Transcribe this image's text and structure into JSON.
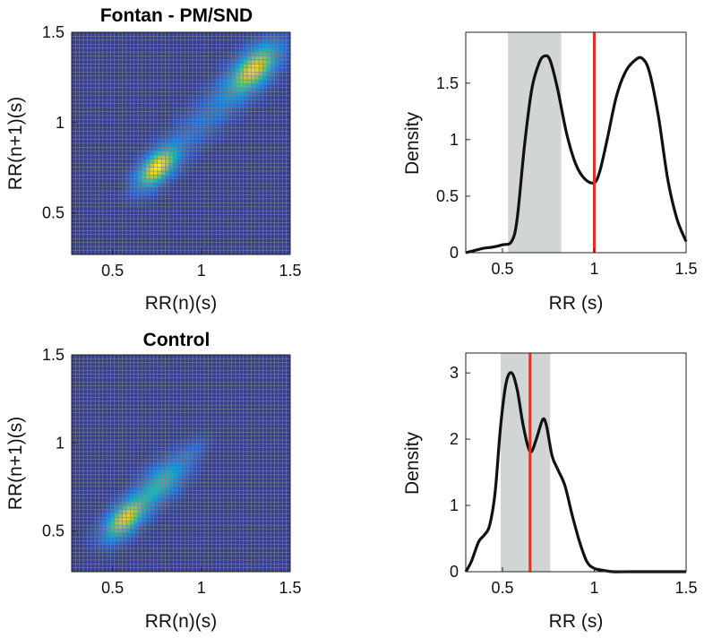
{
  "colors": {
    "background": "#ffffff",
    "heatmap_low": "#353f8c",
    "heatmap_grid": "#7d8199",
    "density_line": "#111111",
    "band_fill": "#d1d5d3",
    "median_line": "#e23222"
  },
  "chart_data": [
    {
      "type": "heatmap",
      "title": "Fontan - PM/SND",
      "xlabel": "RR(n)(s)",
      "ylabel": "RR(n+1)(s)",
      "xlim": [
        0.27,
        1.5
      ],
      "ylim": [
        0.27,
        1.5
      ],
      "xticks": [
        "0.5",
        "1",
        "1.5"
      ],
      "yticks": [
        "0.5",
        "1",
        "1.5"
      ],
      "xtick_values": [
        0.5,
        1,
        1.5
      ],
      "ytick_values": [
        0.5,
        1,
        1.5
      ],
      "grid_bins": 56,
      "hotspots": [
        {
          "x": 0.75,
          "y": 0.75,
          "sx": 0.065,
          "sy": 0.065,
          "peak": 0.95
        },
        {
          "x": 1.3,
          "y": 1.3,
          "sx": 0.08,
          "sy": 0.08,
          "peak": 0.8
        },
        {
          "x": 1.08,
          "y": 1.08,
          "sx": 0.2,
          "sy": 0.09,
          "peak": 0.25
        }
      ]
    },
    {
      "type": "area",
      "xlabel": "RR (s)",
      "ylabel": "Density",
      "xlim": [
        0.3,
        1.5
      ],
      "ylim": [
        0,
        1.95
      ],
      "xticks": [
        "0.5",
        "1",
        "1.5"
      ],
      "yticks": [
        "0",
        "0.5",
        "1",
        "1.5"
      ],
      "xtick_values": [
        0.5,
        1,
        1.5
      ],
      "ytick_values": [
        0,
        0.5,
        1,
        1.5
      ],
      "shaded_band": [
        0.53,
        0.82
      ],
      "median_line": 1.0,
      "curve_x": [
        0.3,
        0.35,
        0.4,
        0.45,
        0.5,
        0.55,
        0.58,
        0.62,
        0.66,
        0.7,
        0.73,
        0.76,
        0.8,
        0.85,
        0.9,
        0.95,
        1.0,
        1.03,
        1.07,
        1.12,
        1.17,
        1.22,
        1.26,
        1.3,
        1.35,
        1.4,
        1.45,
        1.5
      ],
      "curve_y": [
        0.0,
        0.02,
        0.04,
        0.05,
        0.07,
        0.1,
        0.3,
        0.95,
        1.45,
        1.68,
        1.74,
        1.7,
        1.45,
        1.05,
        0.78,
        0.65,
        0.62,
        0.72,
        1.0,
        1.38,
        1.6,
        1.7,
        1.72,
        1.6,
        1.2,
        0.65,
        0.3,
        0.1
      ]
    },
    {
      "type": "heatmap",
      "title": "Control",
      "xlabel": "RR(n)(s)",
      "ylabel": "RR(n+1)(s)",
      "xlim": [
        0.27,
        1.5
      ],
      "ylim": [
        0.27,
        1.5
      ],
      "xticks": [
        "0.5",
        "1",
        "1.5"
      ],
      "yticks": [
        "0.5",
        "1",
        "1.5"
      ],
      "xtick_values": [
        0.5,
        1,
        1.5
      ],
      "ytick_values": [
        0.5,
        1,
        1.5
      ],
      "grid_bins": 56,
      "hotspots": [
        {
          "x": 0.57,
          "y": 0.57,
          "sx": 0.07,
          "sy": 0.07,
          "peak": 0.9
        },
        {
          "x": 0.78,
          "y": 0.78,
          "sx": 0.08,
          "sy": 0.08,
          "peak": 0.55
        },
        {
          "x": 0.95,
          "y": 0.95,
          "sx": 0.05,
          "sy": 0.05,
          "peak": 0.15
        }
      ]
    },
    {
      "type": "area",
      "xlabel": "RR (s)",
      "ylabel": "Density",
      "xlim": [
        0.3,
        1.5
      ],
      "ylim": [
        0,
        3.3
      ],
      "xticks": [
        "0.5",
        "1",
        "1.5"
      ],
      "yticks": [
        "0",
        "1",
        "2",
        "3"
      ],
      "xtick_values": [
        0.5,
        1,
        1.5
      ],
      "ytick_values": [
        0,
        1,
        2,
        3
      ],
      "shaded_band": [
        0.49,
        0.76
      ],
      "median_line": 0.65,
      "curve_x": [
        0.3,
        0.33,
        0.37,
        0.4,
        0.43,
        0.46,
        0.49,
        0.52,
        0.55,
        0.58,
        0.61,
        0.64,
        0.66,
        0.69,
        0.72,
        0.74,
        0.77,
        0.8,
        0.84,
        0.88,
        0.92,
        0.96,
        1.0,
        1.05,
        1.1,
        1.2,
        1.3,
        1.4,
        1.5
      ],
      "curve_y": [
        0.0,
        0.15,
        0.45,
        0.55,
        0.7,
        1.2,
        2.2,
        2.85,
        3.0,
        2.75,
        2.25,
        1.88,
        1.82,
        2.05,
        2.3,
        2.2,
        1.75,
        1.55,
        1.3,
        0.85,
        0.45,
        0.15,
        0.05,
        0.02,
        0.0,
        0.0,
        0.0,
        0.0,
        0.0
      ]
    }
  ]
}
